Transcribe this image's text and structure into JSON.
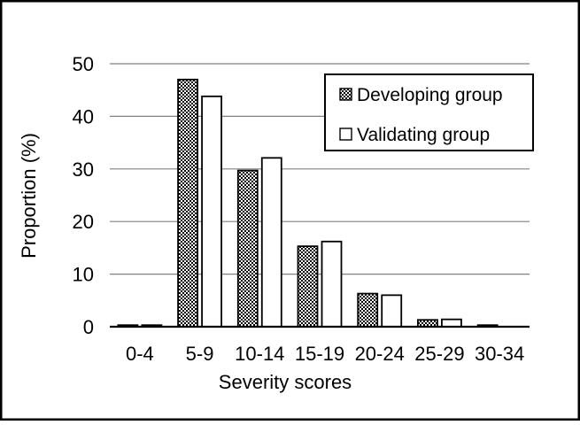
{
  "figure": {
    "background": "#ffffff",
    "frame_border_color": "#000000"
  },
  "chart_data": {
    "type": "bar",
    "title": "",
    "xlabel": "Severity scores",
    "ylabel": "Proportion (%)",
    "categories": [
      "0-4",
      "5-9",
      "10-14",
      "15-19",
      "20-24",
      "25-29",
      "30-34"
    ],
    "series": [
      {
        "name": "Developing group",
        "fill": "dot-pattern",
        "values": [
          0.3,
          47.0,
          29.7,
          15.3,
          6.3,
          1.3,
          0.3
        ]
      },
      {
        "name": "Validating group",
        "fill": "white",
        "values": [
          0.3,
          43.8,
          32.1,
          16.2,
          6.0,
          1.4,
          0.0
        ]
      }
    ],
    "ylim": [
      0,
      50
    ],
    "yticks": [
      0,
      10,
      20,
      30,
      40,
      50
    ],
    "grid": "horizontal",
    "gridline_color": "#808080",
    "bar_border_color": "#000000",
    "legend_position": "top-right",
    "legend_border_color": "#000000"
  }
}
